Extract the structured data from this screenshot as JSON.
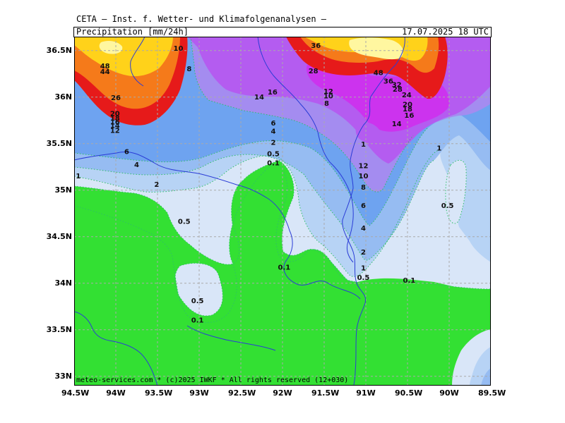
{
  "header": {
    "title": "CETA — Inst. f. Wetter- und Klimafolgenanalysen —",
    "subtitle": "Precipitation [mm/24h]",
    "timestamp": "17.07.2025 18 UTC"
  },
  "footer": {
    "text": "meteo-services.com * (c)2025 IWKF * All rights reserved (12+030)"
  },
  "axes": {
    "lon_labels": [
      "94.5W",
      "94W",
      "93.5W",
      "93W",
      "92.5W",
      "92W",
      "91.5W",
      "91W",
      "90.5W",
      "90W",
      "89.5W"
    ],
    "lat_labels": [
      "36.5N",
      "36N",
      "35.5N",
      "35N",
      "34.5N",
      "34N",
      "33.5N",
      "33N"
    ],
    "lon_range": [
      -94.5,
      -89.5
    ],
    "lat_range": [
      32.9,
      36.65
    ],
    "grid": true
  },
  "colors": {
    "green": "#33e033",
    "pale_blue": "#d9e6f8",
    "light_blue": "#b7d3f5",
    "mid_blue": "#96bcf2",
    "blue": "#6ea3f0",
    "lavender": "#a48cf0",
    "purple": "#b45cf0",
    "magenta": "#cc33ee",
    "red": "#e61a1a",
    "orange": "#f57a1a",
    "yellow": "#ffd21a",
    "pale_yellow": "#fff7a0",
    "river": "#2a3cd6",
    "grid": "#aaaaaa"
  },
  "contour_labels": [
    {
      "t": "36",
      "lon": -91.6,
      "lat": 36.55
    },
    {
      "t": "10",
      "lon": -93.25,
      "lat": 36.52
    },
    {
      "t": "48",
      "lon": -94.13,
      "lat": 36.33
    },
    {
      "t": "44",
      "lon": -94.13,
      "lat": 36.27
    },
    {
      "t": "8",
      "lon": -93.12,
      "lat": 36.3
    },
    {
      "t": "28",
      "lon": -91.63,
      "lat": 36.28
    },
    {
      "t": "48",
      "lon": -90.85,
      "lat": 36.26
    },
    {
      "t": "36",
      "lon": -90.73,
      "lat": 36.17
    },
    {
      "t": "32",
      "lon": -90.63,
      "lat": 36.13
    },
    {
      "t": "28",
      "lon": -90.62,
      "lat": 36.08
    },
    {
      "t": "24",
      "lon": -90.51,
      "lat": 36.02
    },
    {
      "t": "26",
      "lon": -94.0,
      "lat": 35.99
    },
    {
      "t": "16",
      "lon": -92.12,
      "lat": 36.05
    },
    {
      "t": "14",
      "lon": -92.28,
      "lat": 36.0
    },
    {
      "t": "12",
      "lon": -91.45,
      "lat": 36.06
    },
    {
      "t": "10",
      "lon": -91.45,
      "lat": 36.01
    },
    {
      "t": "8",
      "lon": -91.47,
      "lat": 35.93
    },
    {
      "t": "20",
      "lon": -90.5,
      "lat": 35.92
    },
    {
      "t": "18",
      "lon": -90.5,
      "lat": 35.87
    },
    {
      "t": "16",
      "lon": -90.48,
      "lat": 35.8
    },
    {
      "t": "20",
      "lon": -94.01,
      "lat": 35.82
    },
    {
      "t": "18",
      "lon": -94.01,
      "lat": 35.77
    },
    {
      "t": "16",
      "lon": -94.01,
      "lat": 35.73
    },
    {
      "t": "14",
      "lon": -94.01,
      "lat": 35.69
    },
    {
      "t": "12",
      "lon": -94.01,
      "lat": 35.64
    },
    {
      "t": "14",
      "lon": -90.63,
      "lat": 35.71
    },
    {
      "t": "6",
      "lon": -92.11,
      "lat": 35.72
    },
    {
      "t": "4",
      "lon": -92.11,
      "lat": 35.63
    },
    {
      "t": "2",
      "lon": -92.11,
      "lat": 35.51
    },
    {
      "t": "1",
      "lon": -91.03,
      "lat": 35.49
    },
    {
      "t": "1",
      "lon": -90.12,
      "lat": 35.45
    },
    {
      "t": "6",
      "lon": -93.87,
      "lat": 35.41
    },
    {
      "t": "0.5",
      "lon": -92.11,
      "lat": 35.39
    },
    {
      "t": "0.1",
      "lon": -92.11,
      "lat": 35.29
    },
    {
      "t": "4",
      "lon": -93.75,
      "lat": 35.27
    },
    {
      "t": "12",
      "lon": -91.03,
      "lat": 35.26
    },
    {
      "t": "10",
      "lon": -91.03,
      "lat": 35.15
    },
    {
      "t": "1",
      "lon": -94.45,
      "lat": 35.15
    },
    {
      "t": "2",
      "lon": -93.51,
      "lat": 35.06
    },
    {
      "t": "8",
      "lon": -91.03,
      "lat": 35.03
    },
    {
      "t": "6",
      "lon": -91.03,
      "lat": 34.83
    },
    {
      "t": "0.5",
      "lon": -90.02,
      "lat": 34.83
    },
    {
      "t": "0.5",
      "lon": -93.18,
      "lat": 34.66
    },
    {
      "t": "4",
      "lon": -91.03,
      "lat": 34.59
    },
    {
      "t": "2",
      "lon": -91.03,
      "lat": 34.33
    },
    {
      "t": "0.1",
      "lon": -91.98,
      "lat": 34.17
    },
    {
      "t": "1",
      "lon": -91.03,
      "lat": 34.16
    },
    {
      "t": "0.5",
      "lon": -91.03,
      "lat": 34.06
    },
    {
      "t": "0.1",
      "lon": -90.48,
      "lat": 34.03
    },
    {
      "t": "0.5",
      "lon": -93.02,
      "lat": 33.81
    },
    {
      "t": "0.1",
      "lon": -93.02,
      "lat": 33.6
    }
  ]
}
